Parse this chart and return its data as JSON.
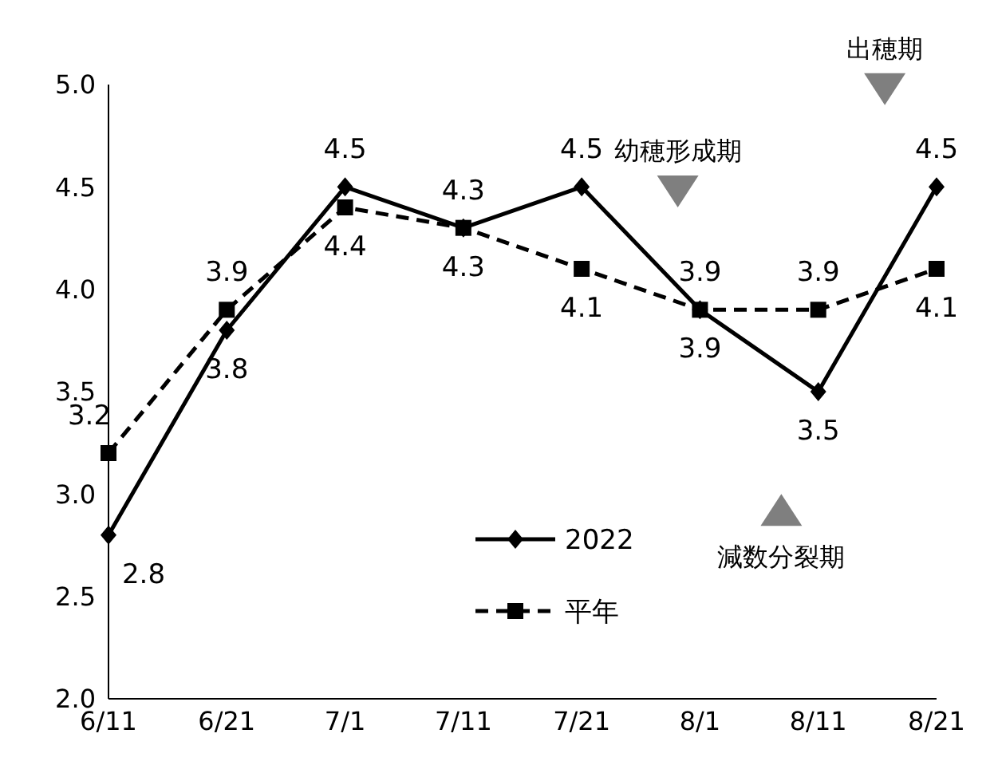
{
  "chart_data": {
    "type": "line",
    "categories": [
      "6/11",
      "6/21",
      "7/1",
      "7/11",
      "7/21",
      "8/1",
      "8/11",
      "8/21"
    ],
    "series": [
      {
        "name": "2022",
        "color": "#000000",
        "values": [
          2.8,
          3.8,
          4.5,
          4.3,
          4.5,
          3.9,
          3.5,
          4.5
        ],
        "marker": "diamond",
        "line_style": "solid"
      },
      {
        "name": "平年",
        "color": "#000000",
        "values": [
          3.2,
          3.9,
          4.4,
          4.3,
          4.1,
          3.9,
          3.9,
          4.1
        ],
        "marker": "square",
        "line_style": "dashed"
      }
    ],
    "ylim": [
      2,
      5
    ],
    "yticks": [
      {
        "value": 2,
        "label": "2.0"
      },
      {
        "value": 2.5,
        "label": "2.5"
      },
      {
        "value": 3,
        "label": "3.0"
      },
      {
        "value": 3.5,
        "label": "3.5"
      },
      {
        "value": 4,
        "label": "4.0"
      },
      {
        "value": 4.5,
        "label": "4.5"
      },
      {
        "value": 5,
        "label": "5.0"
      }
    ],
    "grid": false,
    "legend": "bottom",
    "data_labels": true,
    "annotations": [
      "幼穂形成期",
      "減数分裂期",
      "出穂期"
    ]
  }
}
